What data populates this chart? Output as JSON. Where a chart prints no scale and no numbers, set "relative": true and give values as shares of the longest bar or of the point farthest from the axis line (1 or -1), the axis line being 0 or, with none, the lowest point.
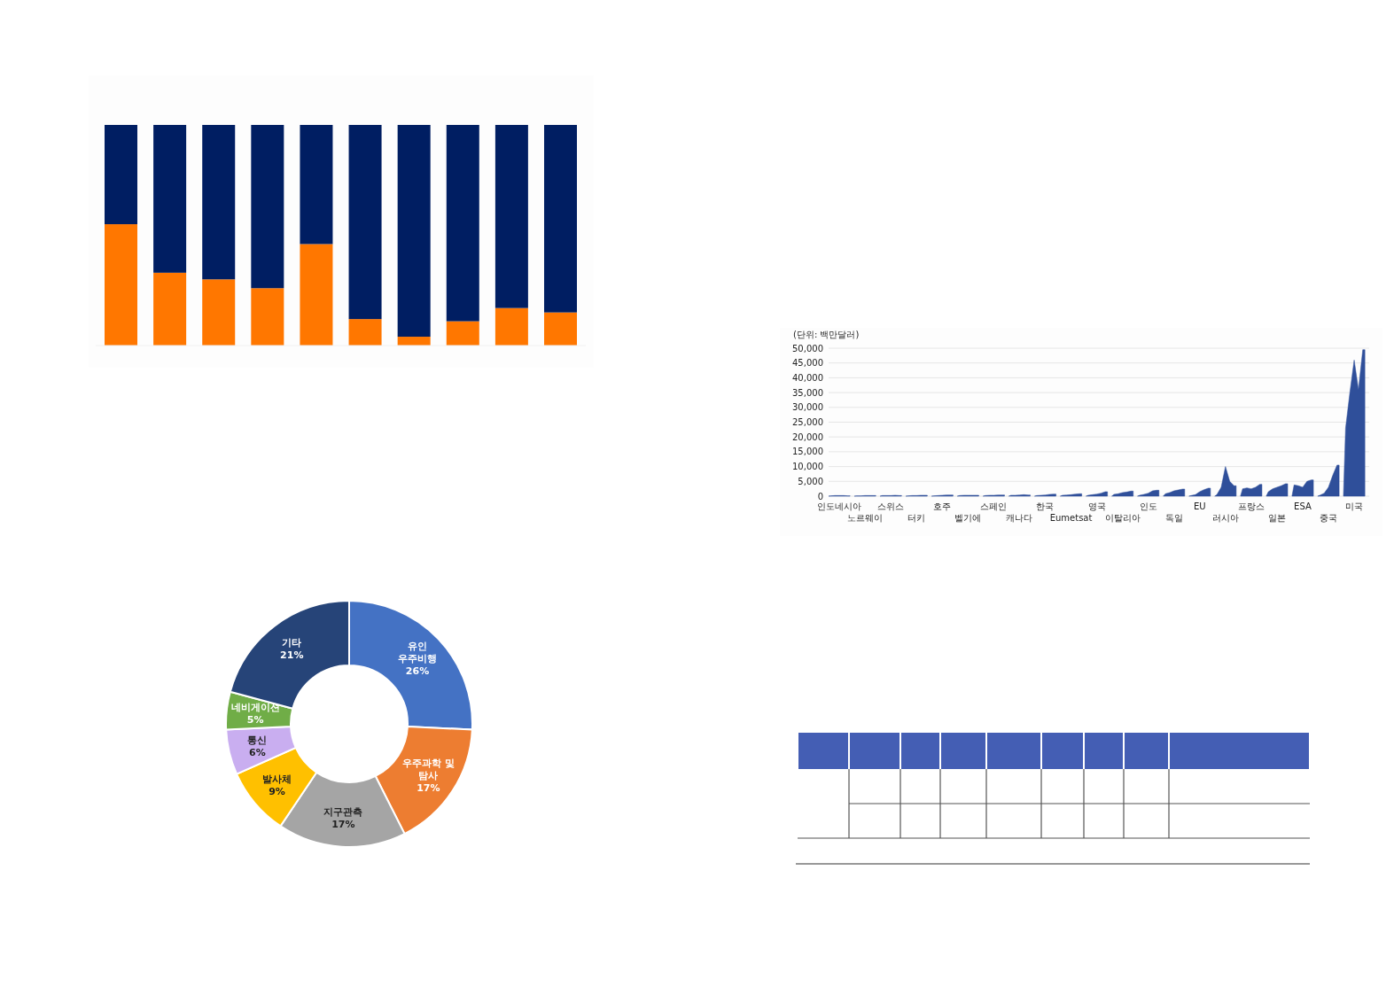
{
  "chart_data": [
    {
      "type": "bar",
      "stacked": true,
      "relative": true,
      "categories": [
        null,
        null,
        null,
        null,
        null,
        null,
        null,
        null,
        null,
        null
      ],
      "series": [
        {
          "color": "#ff7700",
          "values": [
            0.55,
            0.33,
            0.3,
            0.26,
            0.46,
            0.12,
            0.04,
            0.11,
            0.17,
            0.15
          ]
        },
        {
          "color": "#001e62",
          "values": [
            0.45,
            0.67,
            0.7,
            0.74,
            0.54,
            0.88,
            0.96,
            0.89,
            0.83,
            0.85
          ]
        }
      ]
    },
    {
      "type": "donut",
      "value_labels": [
        "26%",
        "17%",
        "17%",
        "9%",
        "6%",
        "5%",
        "21%"
      ],
      "categories": [
        "유인 우주비행",
        "우주과학 및 탐사",
        "지구관측",
        "발사체",
        "통신",
        "네비게이션",
        "기타"
      ],
      "values": [
        26,
        17,
        17,
        9,
        6,
        5,
        21
      ],
      "colors": [
        "#4472c4",
        "#ed7d31",
        "#a5a5a5",
        "#ffc000",
        "#c9aef0",
        "#70ad47",
        "#264478"
      ]
    },
    {
      "type": "area",
      "ylabel": "(단위: 백만달러)",
      "color": "#2f4f9a",
      "grid": "y",
      "ylim": [
        0,
        50000
      ],
      "yticks": [
        0,
        {
          "value": 5000,
          "label": "5,000"
        },
        {
          "value": 10000,
          "label": "10,000"
        },
        {
          "value": 15000,
          "label": "15,000"
        },
        {
          "value": 20000,
          "label": "20,000"
        },
        {
          "value": 25000,
          "label": "25,000"
        },
        {
          "value": 30000,
          "label": "30,000"
        },
        {
          "value": 35000,
          "label": "35,000"
        },
        {
          "value": 40000,
          "label": "40,000"
        },
        {
          "value": 45000,
          "label": "45,000"
        },
        {
          "value": 50000,
          "label": "50,000"
        }
      ],
      "categories": [
        null,
        null,
        "인도네시아",
        null,
        null,
        null,
        null,
        null,
        "노르웨이",
        null,
        null,
        null,
        null,
        null,
        "스위스",
        null,
        null,
        null,
        null,
        null,
        "터키",
        null,
        null,
        null,
        null,
        null,
        "호주",
        null,
        null,
        null,
        null,
        null,
        "벨기에",
        null,
        null,
        null,
        null,
        null,
        "스페인",
        null,
        null,
        null,
        null,
        null,
        "캐나다",
        null,
        null,
        null,
        null,
        null,
        "한국",
        null,
        null,
        null,
        null,
        null,
        "Eumetsat",
        null,
        null,
        null,
        null,
        null,
        "영국",
        null,
        null,
        null,
        null,
        null,
        "이탈리아",
        null,
        null,
        null,
        null,
        null,
        "인도",
        null,
        null,
        null,
        null,
        null,
        "독일",
        null,
        null,
        null,
        null,
        null,
        "EU",
        null,
        null,
        null,
        null,
        null,
        "러시아",
        null,
        null,
        null,
        null,
        null,
        "프랑스",
        null,
        null,
        null,
        null,
        null,
        "일본",
        null,
        null,
        null,
        null,
        null,
        "ESA",
        null,
        null,
        null,
        null,
        null,
        "중국",
        null,
        null,
        null,
        null,
        null,
        "미국",
        null,
        null,
        null
      ],
      "values": [
        100,
        200,
        200,
        200,
        100,
        null,
        100,
        100,
        200,
        200,
        200,
        null,
        200,
        200,
        200,
        300,
        200,
        null,
        100,
        200,
        200,
        300,
        300,
        null,
        100,
        200,
        300,
        400,
        400,
        null,
        200,
        300,
        300,
        300,
        300,
        null,
        200,
        300,
        300,
        400,
        400,
        null,
        300,
        300,
        400,
        500,
        400,
        null,
        200,
        300,
        400,
        600,
        700,
        null,
        300,
        400,
        500,
        700,
        800,
        null,
        300,
        500,
        700,
        1000,
        1500,
        null,
        600,
        800,
        1200,
        1400,
        1700,
        null,
        300,
        600,
        1000,
        1800,
        2000,
        null,
        800,
        1200,
        1800,
        2100,
        2400,
        null,
        200,
        500,
        1500,
        2200,
        2700,
        null,
        500,
        3000,
        10000,
        5000,
        3500,
        null,
        2500,
        2800,
        2500,
        3000,
        4000,
        null,
        1500,
        2500,
        3000,
        3500,
        4200,
        null,
        3800,
        3500,
        3000,
        5000,
        5500,
        null,
        300,
        1000,
        3000,
        7000,
        10500,
        null,
        23000,
        35000,
        46000,
        36000,
        49500,
        null
      ]
    }
  ]
}
